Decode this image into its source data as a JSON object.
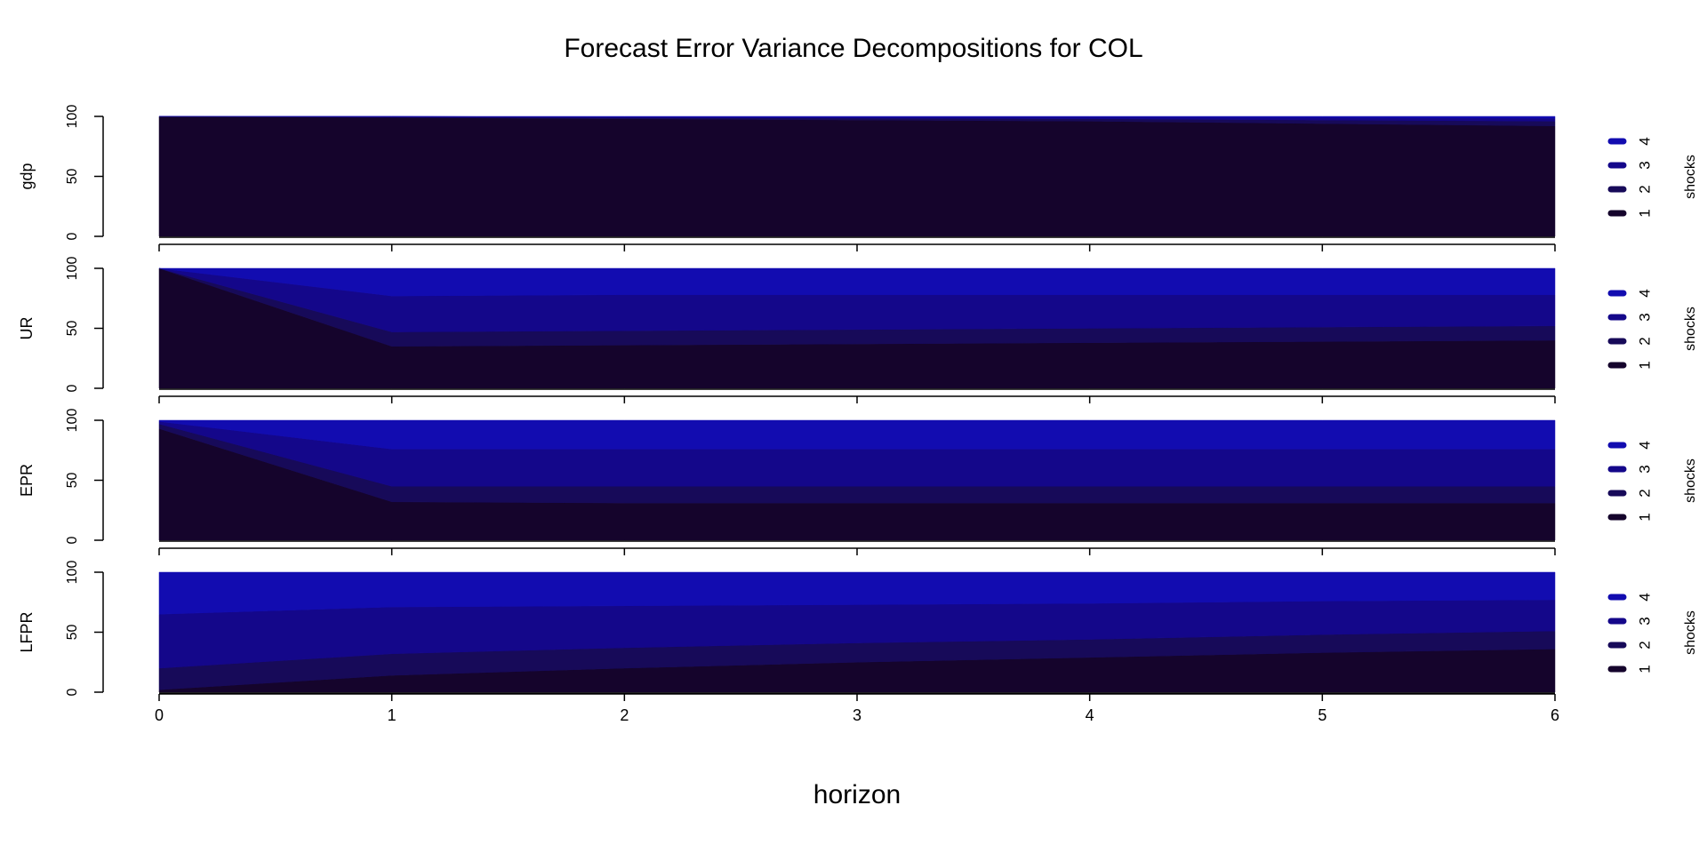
{
  "chart_data": {
    "type": "area",
    "title": "Forecast Error Variance Decompositions for COL",
    "xlabel": "horizon",
    "x": [
      0,
      1,
      2,
      3,
      4,
      5,
      6
    ],
    "x_ticks": [
      "0",
      "1",
      "2",
      "3",
      "4",
      "5",
      "6"
    ],
    "ylim": [
      0,
      100
    ],
    "y_ticks": [
      "0",
      "50",
      "100"
    ],
    "legend_title": "shocks",
    "legend_placement": "right",
    "shock_labels": [
      "1",
      "2",
      "3",
      "4"
    ],
    "colors": [
      "#15042c",
      "#170a59",
      "#14078a",
      "#120cb0"
    ],
    "stacked": true,
    "panels": [
      {
        "ylabel": "gdp",
        "series": [
          {
            "name": "1",
            "values": [
              100,
              99,
              98,
              97,
              96,
              94,
              92
            ]
          },
          {
            "name": "2",
            "values": [
              0,
              0.5,
              1,
              1.5,
              2,
              3,
              4
            ]
          },
          {
            "name": "3",
            "values": [
              0,
              0.5,
              0.5,
              1,
              1.5,
              2,
              2.5
            ]
          },
          {
            "name": "4",
            "values": [
              0,
              0,
              0.5,
              0.5,
              0.5,
              1,
              1.5
            ]
          }
        ]
      },
      {
        "ylabel": "UR",
        "series": [
          {
            "name": "1",
            "values": [
              100,
              35,
              36,
              37,
              38,
              39,
              40
            ]
          },
          {
            "name": "2",
            "values": [
              0,
              12,
              12,
              12,
              12,
              12,
              12
            ]
          },
          {
            "name": "3",
            "values": [
              0,
              30,
              30,
              29,
              28,
              27,
              26
            ]
          },
          {
            "name": "4",
            "values": [
              0,
              23,
              22,
              22,
              22,
              22,
              22
            ]
          }
        ]
      },
      {
        "ylabel": "EPR",
        "series": [
          {
            "name": "1",
            "values": [
              93,
              32,
              31,
              31,
              31,
              31,
              31
            ]
          },
          {
            "name": "2",
            "values": [
              4,
              13,
              14,
              14,
              14,
              14,
              14
            ]
          },
          {
            "name": "3",
            "values": [
              2,
              31,
              31,
              31,
              31,
              31,
              31
            ]
          },
          {
            "name": "4",
            "values": [
              1,
              24,
              24,
              24,
              24,
              24,
              24
            ]
          }
        ]
      },
      {
        "ylabel": "LFPR",
        "series": [
          {
            "name": "1",
            "values": [
              2,
              14,
              20,
              25,
              29,
              33,
              36
            ]
          },
          {
            "name": "2",
            "values": [
              18,
              18,
              17,
              16,
              15,
              15,
              15
            ]
          },
          {
            "name": "3",
            "values": [
              45,
              39,
              35,
              32,
              30,
              28,
              26
            ]
          },
          {
            "name": "4",
            "values": [
              35,
              29,
              28,
              27,
              26,
              24,
              23
            ]
          }
        ]
      }
    ]
  }
}
